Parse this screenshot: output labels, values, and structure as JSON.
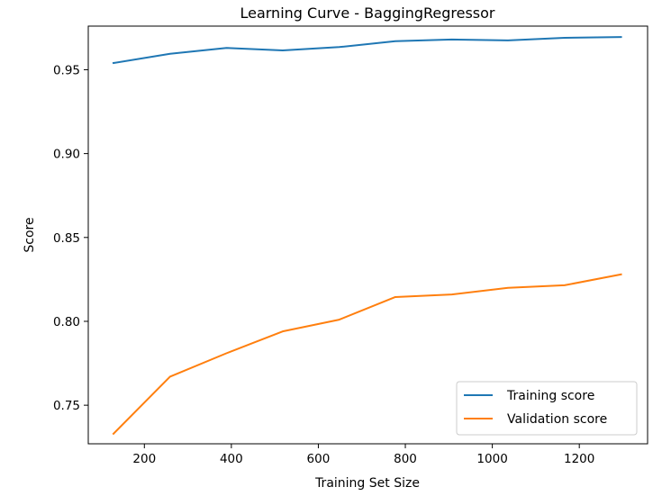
{
  "chart_data": {
    "type": "line",
    "title": "Learning Curve - BaggingRegressor",
    "xlabel": "Training Set Size",
    "ylabel": "Score",
    "xlim": [
      71,
      1357
    ],
    "ylim": [
      0.727,
      0.976
    ],
    "xticks": [
      200,
      400,
      600,
      800,
      1000,
      1200
    ],
    "yticks": [
      0.75,
      0.8,
      0.85,
      0.9,
      0.95
    ],
    "ytick_labels": [
      "0.75",
      "0.80",
      "0.85",
      "0.90",
      "0.95"
    ],
    "grid": false,
    "legend": "lower-right",
    "x": [
      129,
      259,
      389,
      518,
      648,
      777,
      907,
      1036,
      1166,
      1296
    ],
    "series": [
      {
        "name": "Training score",
        "color": "#1f77b4",
        "values": [
          0.954,
          0.9595,
          0.963,
          0.9615,
          0.9635,
          0.967,
          0.968,
          0.9675,
          0.969,
          0.9695
        ]
      },
      {
        "name": "Validation score",
        "color": "#ff7f0e",
        "values": [
          0.733,
          0.767,
          0.781,
          0.794,
          0.801,
          0.8145,
          0.816,
          0.82,
          0.8215,
          0.828
        ]
      }
    ]
  }
}
